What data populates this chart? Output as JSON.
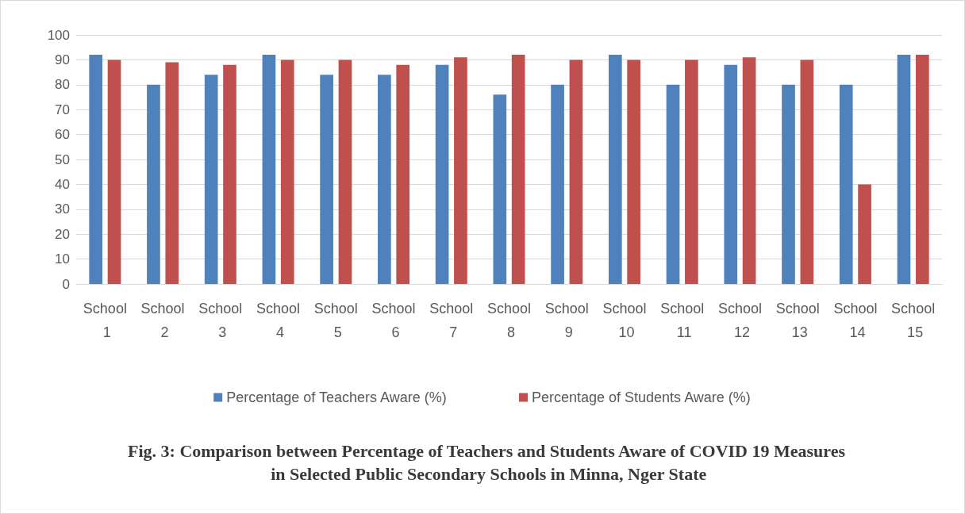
{
  "chart_data": {
    "type": "bar",
    "title": "Fig. 3: Comparison between Percentage of Teachers and Students Aware of COVID 19 Measures in Selected Public Secondary Schools in Minna, Nger State",
    "categories": [
      "School 1",
      "School 2",
      "School 3",
      "School 4",
      "School 5",
      "School 6",
      "School 7",
      "School 8",
      "School 9",
      "School 10",
      "School 11",
      "School 12",
      "School 13",
      "School 14",
      "School 15"
    ],
    "series": [
      {
        "name": "Percentage of Teachers Aware (%)",
        "color": "#4f81bd",
        "values": [
          92,
          80,
          84,
          92,
          84,
          84,
          88,
          76,
          80,
          92,
          80,
          88,
          80,
          80,
          92
        ]
      },
      {
        "name": "Percentage of Students Aware (%)",
        "color": "#c0504d",
        "values": [
          90,
          89,
          88,
          90,
          90,
          88,
          91,
          92,
          90,
          90,
          90,
          91,
          90,
          40,
          92
        ]
      }
    ],
    "ylim": [
      0,
      100
    ],
    "yticks": [
      0,
      10,
      20,
      30,
      40,
      50,
      60,
      70,
      80,
      90,
      100
    ],
    "grid": "y",
    "legend": "bottom"
  }
}
